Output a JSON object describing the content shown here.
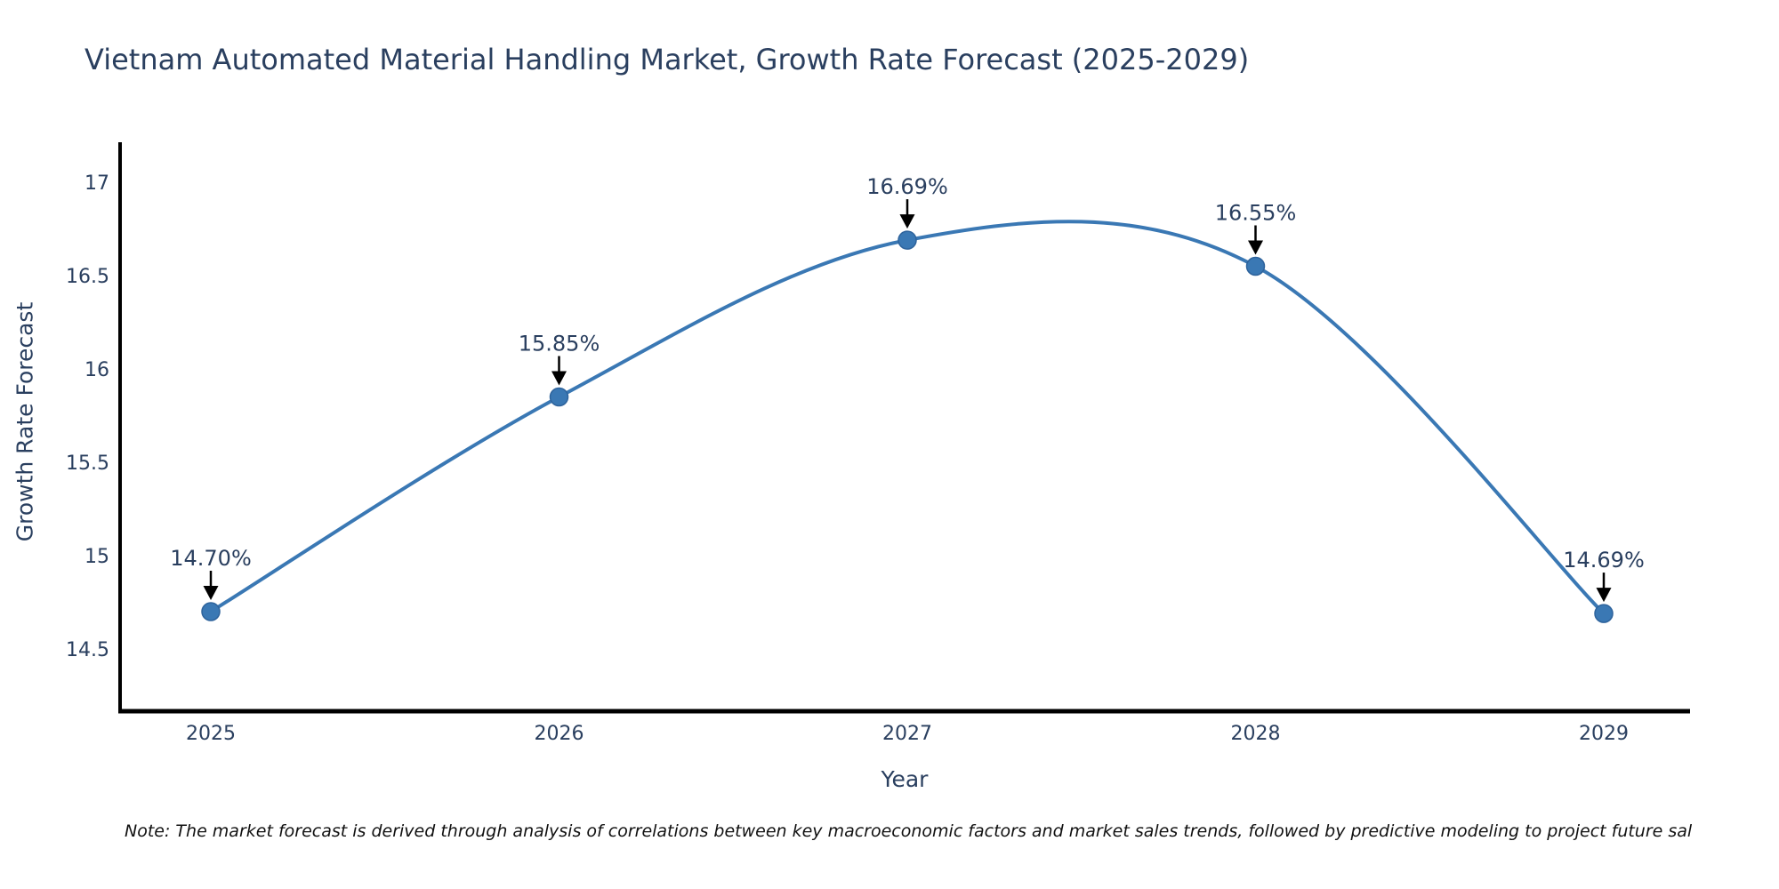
{
  "title": "Vietnam Automated Material Handling Market, Growth Rate Forecast (2025-2029)",
  "note": "Note: The market forecast is derived through analysis of correlations between key macroeconomic factors and market sales trends, followed by predictive modeling to project future sal",
  "chart_data": {
    "type": "line",
    "title": "Vietnam Automated Material Handling Market, Growth Rate Forecast (2025-2029)",
    "xlabel": "Year",
    "ylabel": "Growth Rate Forecast",
    "categories": [
      "2025",
      "2026",
      "2027",
      "2028",
      "2029"
    ],
    "values": [
      14.7,
      15.85,
      16.69,
      16.55,
      14.69
    ],
    "point_labels": [
      "14.70%",
      "15.85%",
      "16.69%",
      "16.55%",
      "14.69%"
    ],
    "y_ticks": [
      14.5,
      15,
      15.5,
      16,
      16.5,
      17
    ],
    "y_tick_labels": [
      "14.5",
      "15",
      "15.5",
      "16",
      "16.5",
      "17"
    ],
    "ylim": [
      14.17,
      17.22
    ],
    "line_shape": "spline",
    "grid": false,
    "legend": "none",
    "colors": {
      "line": "#3a78b4",
      "marker": "#3a78b4",
      "marker_edge": "#2e639c",
      "axis_line": "#000000",
      "text": "#2a3f5f",
      "annotation_arrow": "#000000",
      "note_text": "#111111",
      "background": "#ffffff"
    }
  }
}
